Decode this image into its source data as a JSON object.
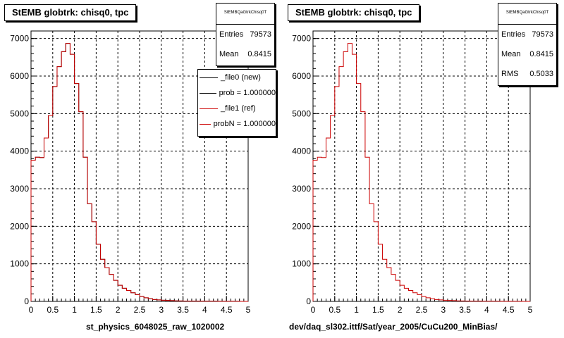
{
  "footer": {
    "stamp": ""
  },
  "colors": {
    "new": "#000000",
    "ref": "#cc0000",
    "grid": "#000000"
  },
  "pads": [
    {
      "title": "StEMB globtrk: chisq0, tpc",
      "stats": {
        "name": "StEMBQaGtrkChisq0T",
        "rows": [
          {
            "label": "Entries",
            "value": "79573"
          },
          {
            "label": "Mean",
            "value": "0.8415"
          }
        ]
      },
      "legend": [
        {
          "label": "_file0 (new)",
          "color": "#000000"
        },
        {
          "label": "prob = 1.000000",
          "color": "#000000"
        },
        {
          "label": "_file1 (ref)",
          "color": "#cc0000"
        },
        {
          "label": "probN = 1.000000",
          "color": "#cc0000"
        }
      ],
      "xlabel": "st_physics_6048025_raw_1020002"
    },
    {
      "title": "StEMB globtrk: chisq0, tpc",
      "stats": {
        "name": "StEMBQaGtrkChisq0T",
        "rows": [
          {
            "label": "Entries",
            "value": "79573"
          },
          {
            "label": "Mean",
            "value": "0.8415"
          },
          {
            "label": "RMS",
            "value": "0.5033"
          }
        ]
      },
      "xlabel": "dev/daq_sl302.ittf/Sat/year_2005/CuCu200_MinBias/"
    }
  ],
  "chart_data": [
    {
      "type": "bar",
      "title": "StEMB globtrk: chisq0, tpc",
      "xlabel": "st_physics_6048025_raw_1020002",
      "ylabel": "",
      "xlim": [
        0,
        5
      ],
      "ylim": [
        0,
        7200
      ],
      "grid": true,
      "legend_position": "top-right",
      "x_ticks": [
        "0",
        "0.5",
        "1",
        "1.5",
        "2",
        "2.5",
        "3",
        "3.5",
        "4",
        "4.5",
        "5"
      ],
      "y_ticks": [
        "0",
        "1000",
        "2000",
        "3000",
        "4000",
        "5000",
        "6000",
        "7000"
      ],
      "bin_edges": [
        0,
        0.1,
        0.2,
        0.3,
        0.4,
        0.5,
        0.6,
        0.7,
        0.8,
        0.9,
        1.0,
        1.1,
        1.2,
        1.3,
        1.4,
        1.5,
        1.6,
        1.7,
        1.8,
        1.9,
        2.0,
        2.1,
        2.2,
        2.3,
        2.4,
        2.5,
        2.6,
        2.7,
        2.8,
        2.9,
        3.0,
        3.1,
        3.2,
        3.3,
        3.4,
        3.5,
        3.6,
        3.7,
        3.8,
        3.9,
        4.0,
        4.1,
        4.2,
        4.3,
        4.4,
        4.5,
        4.6,
        4.7,
        4.8,
        4.9,
        5.0
      ],
      "series": [
        {
          "name": "_file0 (new)",
          "values": [
            3760,
            3840,
            3830,
            4350,
            4950,
            5720,
            6250,
            6650,
            6870,
            6580,
            5800,
            5050,
            3840,
            2600,
            2120,
            1520,
            1120,
            900,
            720,
            560,
            430,
            350,
            290,
            230,
            180,
            130,
            95,
            70,
            50,
            40,
            30,
            25,
            20,
            15,
            12,
            10,
            8,
            7,
            6,
            5,
            5,
            4,
            4,
            3,
            3,
            2,
            2,
            2,
            1,
            1
          ]
        },
        {
          "name": "_file1 (ref)",
          "values": [
            3760,
            3840,
            3830,
            4350,
            4950,
            5720,
            6250,
            6650,
            6870,
            6580,
            5800,
            5050,
            3840,
            2600,
            2120,
            1520,
            1120,
            900,
            720,
            560,
            430,
            350,
            290,
            230,
            180,
            130,
            95,
            70,
            50,
            40,
            30,
            25,
            20,
            15,
            12,
            10,
            8,
            7,
            6,
            5,
            5,
            4,
            4,
            3,
            3,
            2,
            2,
            2,
            1,
            1
          ]
        }
      ]
    },
    {
      "type": "bar",
      "title": "StEMB globtrk: chisq0, tpc",
      "xlabel": "dev/daq_sl302.ittf/Sat/year_2005/CuCu200_MinBias/",
      "ylabel": "",
      "xlim": [
        0,
        5
      ],
      "ylim": [
        0,
        7200
      ],
      "grid": true,
      "x_ticks": [
        "0",
        "0.5",
        "1",
        "1.5",
        "2",
        "2.5",
        "3",
        "3.5",
        "4",
        "4.5",
        "5"
      ],
      "y_ticks": [
        "0",
        "1000",
        "2000",
        "3000",
        "4000",
        "5000",
        "6000",
        "7000"
      ],
      "bin_edges": [
        0,
        0.1,
        0.2,
        0.3,
        0.4,
        0.5,
        0.6,
        0.7,
        0.8,
        0.9,
        1.0,
        1.1,
        1.2,
        1.3,
        1.4,
        1.5,
        1.6,
        1.7,
        1.8,
        1.9,
        2.0,
        2.1,
        2.2,
        2.3,
        2.4,
        2.5,
        2.6,
        2.7,
        2.8,
        2.9,
        3.0,
        3.1,
        3.2,
        3.3,
        3.4,
        3.5,
        3.6,
        3.7,
        3.8,
        3.9,
        4.0,
        4.1,
        4.2,
        4.3,
        4.4,
        4.5,
        4.6,
        4.7,
        4.8,
        4.9,
        5.0
      ],
      "series": [
        {
          "name": "",
          "values": [
            3760,
            3840,
            3830,
            4350,
            4950,
            5720,
            6250,
            6650,
            6870,
            6580,
            5800,
            5050,
            3840,
            2600,
            2120,
            1520,
            1120,
            900,
            720,
            560,
            430,
            350,
            290,
            230,
            180,
            130,
            95,
            70,
            50,
            40,
            30,
            25,
            20,
            15,
            12,
            10,
            8,
            7,
            6,
            5,
            5,
            4,
            4,
            3,
            3,
            2,
            2,
            2,
            1,
            1
          ]
        }
      ]
    }
  ]
}
